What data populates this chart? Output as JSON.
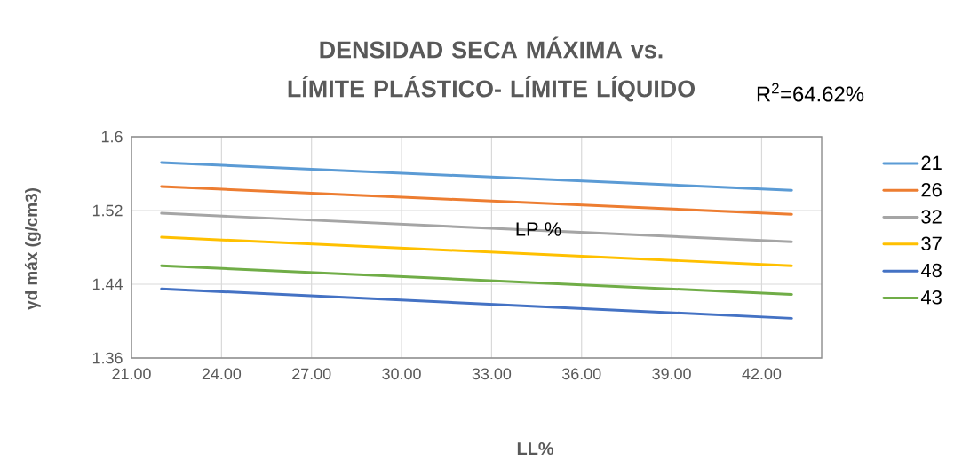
{
  "chart_data": {
    "type": "line",
    "title": "DENSIDAD SECA MÁXIMA vs. LÍMITE PLÁSTICO- LÍMITE LÍQUIDO",
    "xlabel": "LL%",
    "ylabel": "γd máx (g/cm3)",
    "annotations": [
      "LP %",
      "R$^{2}$=64.62%"
    ],
    "xlim": [
      21,
      44
    ],
    "ylim": [
      1.36,
      1.6
    ],
    "xticks": [
      {
        "value": 21,
        "label": "21.00"
      },
      {
        "value": 24,
        "label": "24.00"
      },
      {
        "value": 27,
        "label": "27.00"
      },
      {
        "value": 30,
        "label": "30.00"
      },
      {
        "value": 33,
        "label": "33.00"
      },
      {
        "value": 36,
        "label": "36.00"
      },
      {
        "value": 39,
        "label": "39.00"
      },
      {
        "value": 42,
        "label": "42.00"
      }
    ],
    "yticks": [
      1.36,
      1.44,
      1.52,
      1.6
    ],
    "grid": true,
    "legend": "right",
    "x": [
      22,
      43
    ],
    "series": [
      {
        "name": "21",
        "color": "#5b9bd5",
        "values": [
          1.572,
          1.542
        ]
      },
      {
        "name": "26",
        "color": "#ed7d31",
        "values": [
          1.546,
          1.516
        ]
      },
      {
        "name": "32",
        "color": "#a5a5a5",
        "values": [
          1.517,
          1.486
        ]
      },
      {
        "name": "37",
        "color": "#ffc000",
        "values": [
          1.491,
          1.46
        ]
      },
      {
        "name": "48",
        "color": "#4472c4",
        "values": [
          1.435,
          1.403
        ]
      },
      {
        "name": "43",
        "color": "#70ad47",
        "values": [
          1.46,
          1.429
        ]
      }
    ]
  }
}
